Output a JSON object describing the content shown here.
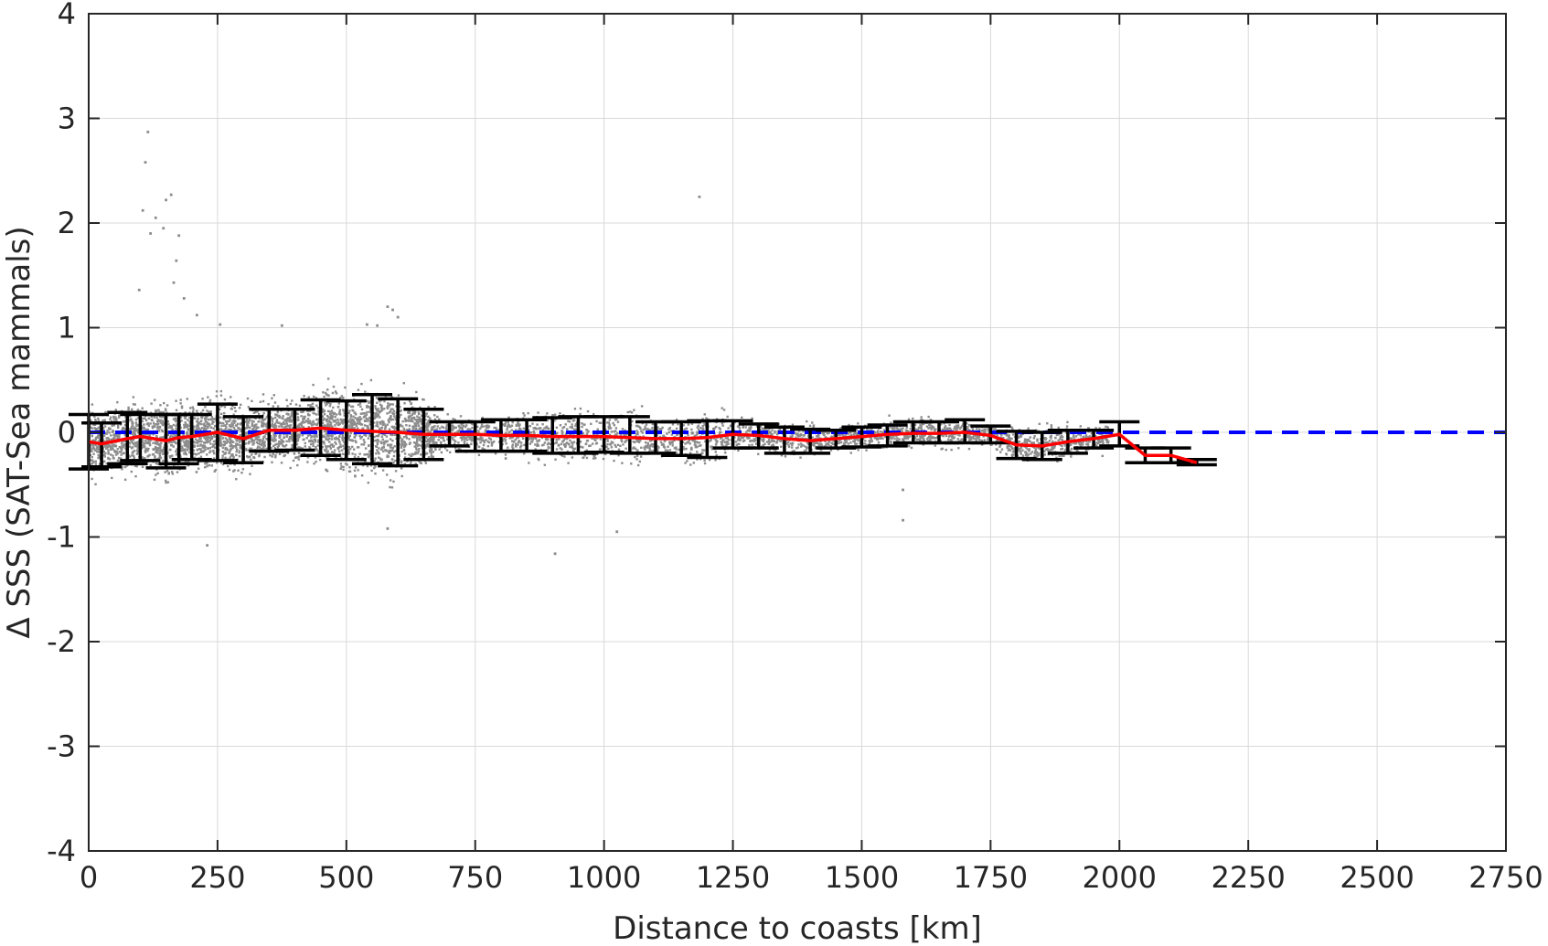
{
  "chart_data": {
    "type": "scatter",
    "title": "",
    "xlabel": "Distance to coasts [km]",
    "ylabel": "Δ SSS (SAT-Sea mammals)",
    "xlim": [
      0,
      2750
    ],
    "ylim": [
      -4,
      4
    ],
    "xticks": [
      0,
      250,
      500,
      750,
      1000,
      1250,
      1500,
      1750,
      2000,
      2250,
      2500,
      2750
    ],
    "xtick_labels": [
      "0",
      "250",
      "500",
      "750",
      "1000",
      "1250",
      "1500",
      "1750",
      "2000",
      "2250",
      "2500",
      "2750"
    ],
    "yticks": [
      4,
      3,
      2,
      1,
      0,
      -1,
      -2,
      -3,
      -4
    ],
    "ytick_labels": [
      "4",
      "3",
      "2",
      "1",
      "0",
      "-1",
      "-2",
      "-3",
      "-4"
    ],
    "grid": true,
    "colors": {
      "points": "#8c8c8c",
      "mean_line": "#ff0000",
      "zero_line": "#0000ff",
      "error_bars": "#000000"
    },
    "zero_line": {
      "y": 0,
      "style": "dashed"
    },
    "bins": {
      "x": [
        0,
        25,
        75,
        100,
        150,
        175,
        200,
        250,
        300,
        350,
        400,
        450,
        500,
        550,
        600,
        650,
        700,
        750,
        800,
        850,
        900,
        950,
        1000,
        1050,
        1100,
        1150,
        1200,
        1250,
        1300,
        1350,
        1400,
        1450,
        1500,
        1550,
        1600,
        1650,
        1700,
        1750,
        1800,
        1850,
        1900,
        1950,
        2000,
        2050,
        2100,
        2150
      ],
      "mean": [
        -0.09,
        -0.11,
        -0.06,
        -0.04,
        -0.08,
        -0.05,
        -0.04,
        0.0,
        -0.06,
        0.02,
        0.02,
        0.04,
        0.02,
        0.01,
        0.0,
        -0.02,
        -0.02,
        -0.02,
        -0.03,
        -0.03,
        -0.04,
        -0.04,
        -0.04,
        -0.05,
        -0.06,
        -0.06,
        -0.05,
        -0.02,
        -0.03,
        -0.06,
        -0.08,
        -0.06,
        -0.04,
        -0.02,
        -0.01,
        -0.01,
        0.0,
        -0.03,
        -0.12,
        -0.13,
        -0.09,
        -0.06,
        -0.02,
        -0.22,
        -0.22,
        -0.29
      ],
      "lower": [
        -0.35,
        -0.33,
        -0.3,
        -0.27,
        -0.34,
        -0.3,
        -0.26,
        -0.27,
        -0.29,
        -0.18,
        -0.17,
        -0.22,
        -0.26,
        -0.3,
        -0.32,
        -0.26,
        -0.13,
        -0.18,
        -0.18,
        -0.18,
        -0.2,
        -0.2,
        -0.19,
        -0.2,
        -0.2,
        -0.22,
        -0.24,
        -0.15,
        -0.15,
        -0.2,
        -0.2,
        -0.15,
        -0.14,
        -0.13,
        -0.1,
        -0.1,
        -0.1,
        -0.1,
        -0.25,
        -0.26,
        -0.2,
        -0.15,
        -0.13,
        -0.29,
        -0.29,
        -0.31
      ],
      "upper": [
        0.17,
        0.09,
        0.19,
        0.17,
        0.17,
        0.17,
        0.17,
        0.27,
        0.15,
        0.22,
        0.22,
        0.31,
        0.3,
        0.36,
        0.32,
        0.22,
        0.1,
        0.1,
        0.12,
        0.12,
        0.14,
        0.15,
        0.15,
        0.15,
        0.1,
        0.1,
        0.11,
        0.11,
        0.08,
        0.05,
        0.03,
        0.02,
        0.05,
        0.07,
        0.1,
        0.1,
        0.12,
        0.06,
        0.01,
        0.0,
        0.02,
        0.02,
        0.1,
        -0.15,
        -0.15,
        -0.26
      ]
    },
    "scatter_summary": {
      "approx_points": 6000,
      "outliers": [
        [
          115,
          2.87
        ],
        [
          110,
          2.58
        ],
        [
          105,
          2.12
        ],
        [
          130,
          2.05
        ],
        [
          145,
          1.95
        ],
        [
          160,
          2.27
        ],
        [
          150,
          2.22
        ],
        [
          175,
          1.88
        ],
        [
          170,
          1.64
        ],
        [
          120,
          1.9
        ],
        [
          98,
          1.36
        ],
        [
          165,
          1.43
        ],
        [
          185,
          1.28
        ],
        [
          210,
          1.12
        ],
        [
          1185,
          2.25
        ],
        [
          580,
          1.2
        ],
        [
          590,
          1.17
        ],
        [
          600,
          1.1
        ],
        [
          540,
          1.03
        ],
        [
          560,
          1.02
        ],
        [
          375,
          1.02
        ],
        [
          255,
          1.03
        ],
        [
          905,
          -1.16
        ],
        [
          230,
          -1.08
        ],
        [
          580,
          -0.92
        ],
        [
          1025,
          -0.95
        ],
        [
          1580,
          -0.84
        ],
        [
          1580,
          -0.55
        ]
      ]
    }
  }
}
